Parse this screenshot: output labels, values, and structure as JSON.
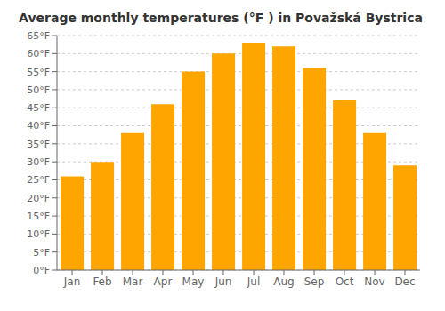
{
  "chart_data": {
    "type": "bar",
    "title": "Average monthly temperatures (°F ) in Považská Bystrica",
    "categories": [
      "Jan",
      "Feb",
      "Mar",
      "Apr",
      "May",
      "Jun",
      "Jul",
      "Aug",
      "Sep",
      "Oct",
      "Nov",
      "Dec"
    ],
    "values": [
      26,
      30,
      38,
      46,
      55,
      60,
      63,
      62,
      56,
      47,
      38,
      29
    ],
    "color": "#FFA500",
    "ylim": [
      0,
      65
    ],
    "yticks": [
      {
        "value": 0,
        "label": "0°F"
      },
      {
        "value": 5,
        "label": "5°F"
      },
      {
        "value": 10,
        "label": "10°F"
      },
      {
        "value": 15,
        "label": "15°F"
      },
      {
        "value": 20,
        "label": "20°F"
      },
      {
        "value": 25,
        "label": "25°F"
      },
      {
        "value": 30,
        "label": "30°F"
      },
      {
        "value": 35,
        "label": "35°F"
      },
      {
        "value": 40,
        "label": "40°F"
      },
      {
        "value": 45,
        "label": "45°F"
      },
      {
        "value": 50,
        "label": "50°F"
      },
      {
        "value": 55,
        "label": "55°F"
      },
      {
        "value": 60,
        "label": "60°F"
      },
      {
        "value": 65,
        "label": "65°F"
      }
    ],
    "grid": true
  }
}
